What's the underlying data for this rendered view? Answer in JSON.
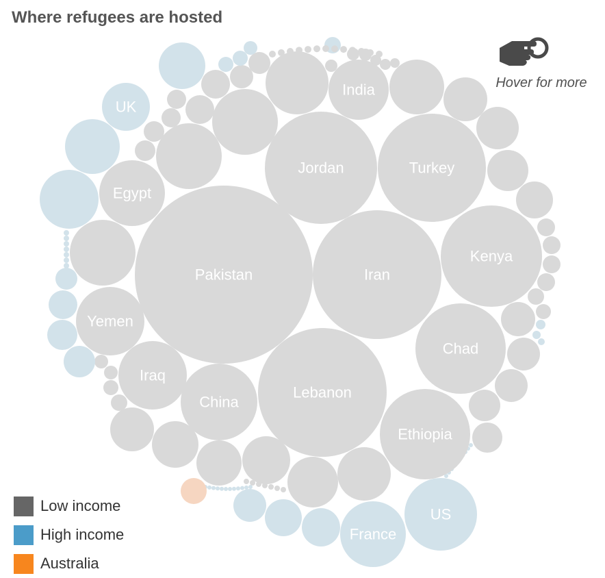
{
  "header": {
    "title": "Where refugees are hosted"
  },
  "hint": {
    "text": "Hover for more",
    "icon": "pointing-hand-icon"
  },
  "legend": {
    "items": [
      {
        "label": "Low income",
        "color": "#666666"
      },
      {
        "label": "High income",
        "color": "#4b9cc9"
      },
      {
        "label": "Australia",
        "color": "#f7861e"
      }
    ]
  },
  "chart_data": {
    "type": "bubble-pack",
    "title": "Where refugees are hosted",
    "color_groups": {
      "low": "#d9d9d9",
      "high": "#d2e2ea",
      "australia": "#f6d6c1"
    },
    "bubbles": [
      {
        "label": "Pakistan",
        "group": "low"
      },
      {
        "label": "Iran",
        "group": "low"
      },
      {
        "label": "Lebanon",
        "group": "low"
      },
      {
        "label": "Jordan",
        "group": "low"
      },
      {
        "label": "Turkey",
        "group": "low"
      },
      {
        "label": "Kenya",
        "group": "low"
      },
      {
        "label": "Chad",
        "group": "low"
      },
      {
        "label": "Ethiopia",
        "group": "low"
      },
      {
        "label": "China",
        "group": "low"
      },
      {
        "label": "Iraq",
        "group": "low"
      },
      {
        "label": "Yemen",
        "group": "low"
      },
      {
        "label": "Egypt",
        "group": "low"
      },
      {
        "label": "India",
        "group": "low"
      },
      {
        "label": "US",
        "group": "high"
      },
      {
        "label": "France",
        "group": "high"
      },
      {
        "label": "UK",
        "group": "high"
      },
      {
        "label": "",
        "group": "australia"
      }
    ]
  }
}
